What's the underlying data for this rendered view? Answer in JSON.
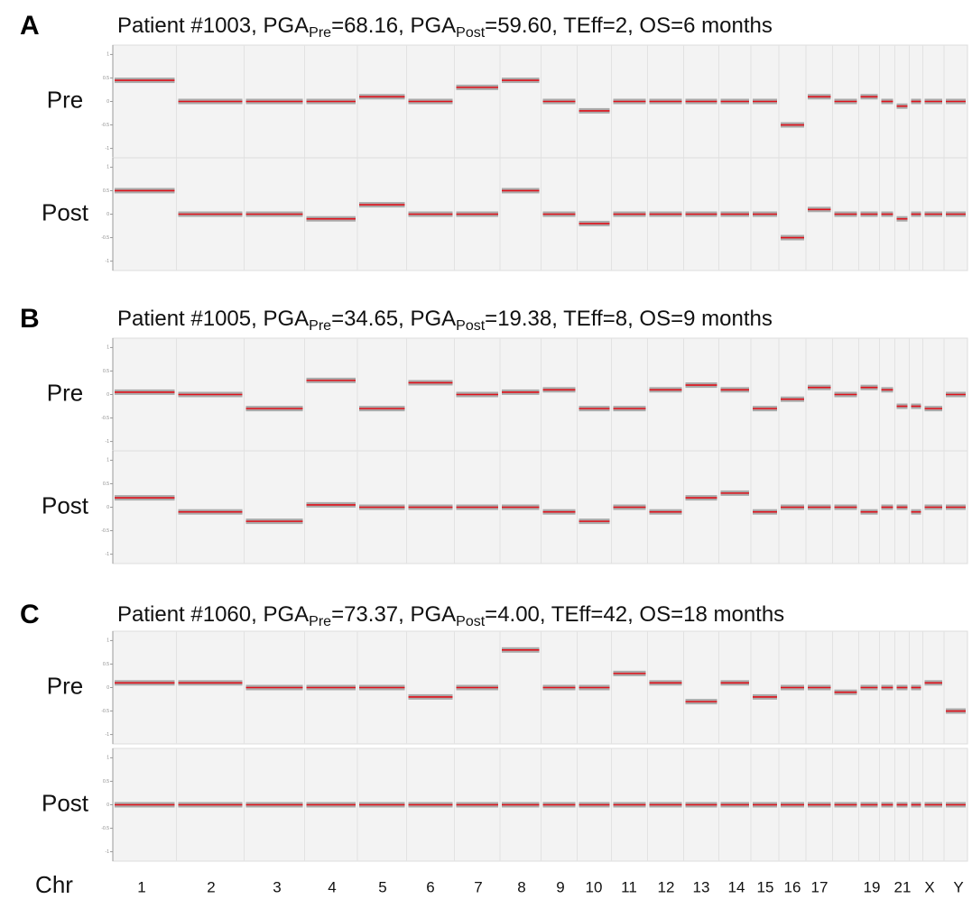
{
  "panels": [
    {
      "letter": "A",
      "title": [
        "Patient #1003, PGA",
        "Pre",
        "=68.16, PGA",
        "Post",
        "=59.60, TEff=2, OS=6 months"
      ],
      "rows": [
        {
          "label": "Pre",
          "values": [
            0.45,
            0.0,
            0.0,
            0.0,
            0.1,
            0.0,
            0.3,
            0.45,
            0.0,
            -0.2,
            0.0,
            0.0,
            0.0,
            0.0,
            0.0,
            -0.5,
            0.1,
            0.0,
            0.1,
            0.0,
            -0.1,
            0.0,
            0.0,
            0.0
          ]
        },
        {
          "label": "Post",
          "values": [
            0.5,
            0.0,
            0.0,
            -0.1,
            0.2,
            0.0,
            0.0,
            0.5,
            0.0,
            -0.2,
            0.0,
            0.0,
            0.0,
            0.0,
            0.0,
            -0.5,
            0.1,
            0.0,
            0.0,
            0.0,
            -0.1,
            0.0,
            0.0,
            0.0
          ]
        }
      ]
    },
    {
      "letter": "B",
      "title": [
        "Patient #1005, PGA",
        "Pre",
        "=34.65, PGA",
        "Post",
        "=19.38, TEff=8, OS=9 months"
      ],
      "rows": [
        {
          "label": "Pre",
          "values": [
            0.05,
            0.0,
            -0.3,
            0.3,
            -0.3,
            0.25,
            0.0,
            0.05,
            0.1,
            -0.3,
            -0.3,
            0.1,
            0.2,
            0.1,
            -0.3,
            -0.1,
            0.15,
            0.0,
            0.15,
            0.1,
            -0.25,
            -0.25,
            -0.3,
            0.0
          ]
        },
        {
          "label": "Post",
          "values": [
            0.2,
            -0.1,
            -0.3,
            0.05,
            0.0,
            0.0,
            0.0,
            0.0,
            -0.1,
            -0.3,
            0.0,
            -0.1,
            0.2,
            0.3,
            -0.1,
            0.0,
            0.0,
            0.0,
            -0.1,
            0.0,
            0.0,
            -0.1,
            0.0,
            0.0
          ]
        }
      ]
    },
    {
      "letter": "C",
      "title": [
        "Patient #1060, PGA",
        "Pre",
        "=73.37, PGA",
        "Post",
        "=4.00, TEff=42, OS=18 months"
      ],
      "rows": [
        {
          "label": "Pre",
          "values": [
            0.1,
            0.1,
            0.0,
            0.0,
            0.0,
            -0.2,
            0.0,
            0.8,
            0.0,
            0.0,
            0.3,
            0.1,
            -0.3,
            0.1,
            -0.2,
            0.0,
            0.0,
            -0.1,
            0.0,
            0.0,
            0.0,
            0.0,
            0.1,
            -0.5
          ]
        },
        {
          "label": "Post",
          "values": [
            0,
            0,
            0,
            0,
            0,
            0,
            0,
            0,
            0,
            0,
            0,
            0,
            0,
            0,
            0,
            0,
            0,
            0,
            0,
            0,
            0,
            0,
            0,
            0
          ]
        }
      ]
    }
  ],
  "x_axis": {
    "label": "Chr",
    "chromosomes": [
      "1",
      "2",
      "3",
      "4",
      "5",
      "6",
      "7",
      "8",
      "9",
      "10",
      "11",
      "12",
      "13",
      "14",
      "15",
      "16",
      "17",
      null,
      "19",
      null,
      "21",
      null,
      "X",
      "Y"
    ]
  },
  "ylim": [
    -1.2,
    1.2
  ],
  "yticks": [
    -1,
    -0.5,
    0,
    0.5,
    1
  ]
}
